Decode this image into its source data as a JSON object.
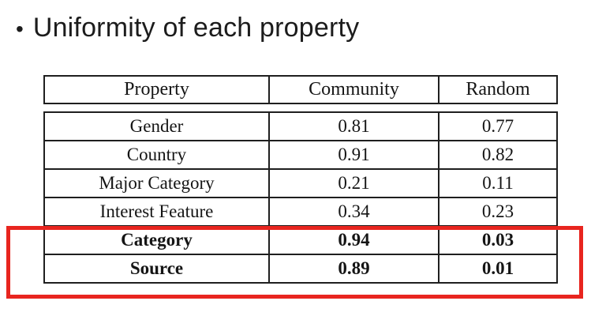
{
  "title": "Uniformity of each property",
  "bullet_glyph": "•",
  "table": {
    "headers": [
      "Property",
      "Community",
      "Random"
    ],
    "rows": [
      {
        "property": "Gender",
        "community": "0.81",
        "random": "0.77"
      },
      {
        "property": "Country",
        "community": "0.91",
        "random": "0.82"
      },
      {
        "property": "Major Category",
        "community": "0.21",
        "random": "0.11"
      },
      {
        "property": "Interest Feature",
        "community": "0.34",
        "random": "0.23"
      },
      {
        "property": "Category",
        "community": "0.94",
        "random": "0.03"
      },
      {
        "property": "Source",
        "community": "0.89",
        "random": "0.01"
      }
    ]
  },
  "colors": {
    "highlight_box": "#e8251f",
    "table_border": "#1f1f1f",
    "text": "#1c1c1c"
  }
}
